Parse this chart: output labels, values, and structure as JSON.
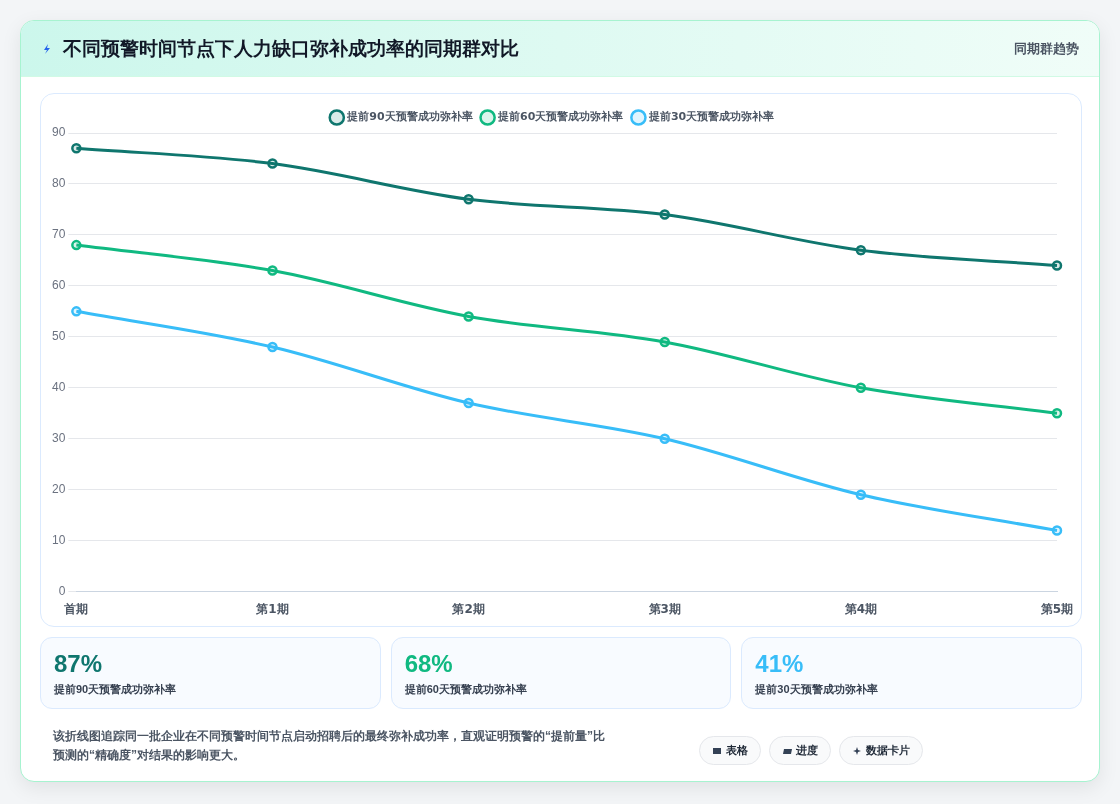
{
  "chart_data": [
    {
      "type": "line",
      "title": "不同预警时间节点下人力缺口弥补成功率的同期群对比",
      "categories": [
        "首期",
        "第1期",
        "第2期",
        "第3期",
        "第4期",
        "第5期"
      ],
      "series": [
        {
          "name": "提前90天预警成功弥补率",
          "color": "#0f766e",
          "values": [
            87,
            84,
            77,
            74,
            67,
            64
          ]
        },
        {
          "name": "提前60天预警成功弥补率",
          "color": "#10b981",
          "values": [
            68,
            63,
            54,
            49,
            40,
            35
          ]
        },
        {
          "name": "提前30天预警成功弥补率",
          "color": "#38bdf8",
          "values": [
            55,
            48,
            37,
            30,
            19,
            12
          ]
        }
      ],
      "ylim": [
        0,
        90
      ],
      "yticks": [
        0,
        10,
        20,
        30,
        40,
        50,
        60,
        70,
        80,
        90
      ],
      "grid": "y",
      "legend": "top",
      "marker": "circle",
      "line_style": "solid",
      "annotations": [
        "同期群趋势"
      ]
    },
    {
      "type": "other",
      "colors": [
        "#0f766e",
        "#10b981",
        "#38bdf8"
      ],
      "annotations": [
        "87%",
        "提前90天预警成功弥补率",
        "68%",
        "提前60天预警成功弥补率",
        "41%",
        "提前30天预警成功弥补率",
        "该折线图追踪同一批企业在不同预警时间节点启动招聘后的最终弥补成功率，直观证明预警的“提前量”比预测的“精确度”对结果的影响更大。",
        "表格",
        "进度",
        "数据卡片"
      ]
    }
  ]
}
